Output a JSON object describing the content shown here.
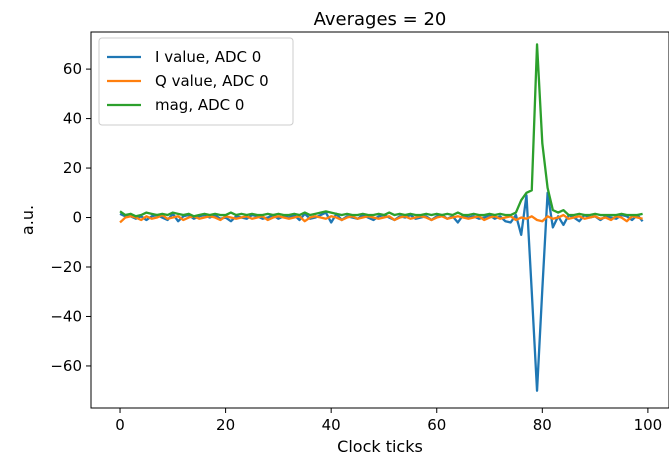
{
  "chart_data": {
    "type": "line",
    "title": "Averages = 20",
    "xlabel": "Clock ticks",
    "ylabel": "a.u.",
    "xlim": [
      -5.5,
      104
    ],
    "ylim": [
      -77,
      75
    ],
    "xticks": [
      0,
      20,
      40,
      60,
      80,
      100
    ],
    "yticks": [
      -60,
      -40,
      -20,
      0,
      20,
      40,
      60
    ],
    "grid": false,
    "legend_position": "top-left",
    "series": [
      {
        "name": "I value, ADC 0",
        "color": "#1f77b4",
        "values": [
          1.5,
          0.5,
          0.5,
          -0.5,
          0.5,
          -1,
          0.5,
          1,
          0,
          -1,
          1.5,
          -1.5,
          0.5,
          1,
          -0.5,
          0.5,
          1,
          0,
          1,
          -0.5,
          0,
          -1.5,
          0.5,
          0,
          -0.5,
          1,
          0.5,
          -0.5,
          0,
          1,
          -0.5,
          0.5,
          0,
          1,
          -1,
          1.5,
          -0.5,
          0,
          1,
          2,
          -2,
          1.5,
          -1,
          0.5,
          0,
          -0.5,
          1,
          0,
          -1,
          0.5,
          1,
          0,
          -1,
          0.5,
          0,
          1,
          -0.5,
          0,
          0.5,
          -1,
          0.5,
          1,
          -0.5,
          0.5,
          -2,
          1,
          0,
          0.5,
          -0.5,
          0,
          1,
          -0.5,
          0.5,
          -1.5,
          -2,
          1,
          -7,
          9,
          -30,
          -70,
          -29,
          10,
          -4,
          0.5,
          -3,
          1,
          0,
          -1.5,
          1,
          0,
          0.5,
          -1,
          0.5,
          0,
          -0.5,
          1,
          0.5,
          -1,
          1,
          -1.5
        ]
      },
      {
        "name": "Q value, ADC 0",
        "color": "#ff7f0e",
        "values": [
          -2,
          0,
          0.5,
          0,
          -1,
          0.5,
          -0.5,
          0,
          1,
          -0.5,
          0,
          0.5,
          -1,
          0,
          0.5,
          -0.5,
          0,
          0.5,
          0,
          -1,
          0.5,
          0,
          -0.5,
          0,
          0.5,
          -0.5,
          0,
          0.5,
          -1,
          0,
          0.5,
          0,
          -0.5,
          0,
          0.5,
          -1.5,
          0,
          0.5,
          0,
          -0.5,
          0.5,
          0,
          -1,
          0,
          0.5,
          -0.5,
          0,
          0.5,
          0,
          -0.5,
          0,
          0.5,
          -1,
          0,
          0.5,
          -0.5,
          0,
          0.5,
          0,
          -1,
          0,
          0.5,
          -0.5,
          0,
          0.5,
          0,
          -0.5,
          0,
          0.5,
          -1,
          0,
          0.5,
          -0.5,
          0,
          0.5,
          -1,
          0,
          -0.5,
          0.5,
          -1,
          -1.5,
          0.5,
          -0.5,
          0,
          1,
          -0.5,
          0,
          0.5,
          -0.5,
          0,
          0.5,
          -0.5,
          0,
          -1,
          0.5,
          0,
          -1.5,
          0.5,
          0,
          -0.5
        ]
      },
      {
        "name": "mag, ADC 0",
        "color": "#2ca02c",
        "values": [
          2.5,
          1,
          1.5,
          0.5,
          1,
          2,
          1.5,
          1,
          1.5,
          1,
          2,
          1.5,
          1,
          1.5,
          0.5,
          1,
          1.5,
          1,
          1.5,
          1,
          1,
          2,
          1,
          1.5,
          1,
          1.5,
          1,
          1,
          1.5,
          1,
          1.5,
          1,
          1,
          1.5,
          1,
          2,
          1,
          1.5,
          2,
          2.5,
          2,
          1.5,
          1,
          1.5,
          1,
          1,
          1.5,
          1,
          1,
          1.5,
          1,
          2,
          1,
          1.5,
          1,
          1.5,
          1,
          1,
          1.5,
          1,
          1.5,
          1,
          1.5,
          1,
          2,
          1,
          1,
          1.5,
          1,
          1,
          1.5,
          1,
          1.5,
          1,
          1,
          2,
          7,
          10,
          11,
          70,
          30,
          12,
          3,
          2,
          3,
          1,
          1,
          1.5,
          1,
          1,
          1.5,
          1,
          1,
          1,
          1,
          1.5,
          1,
          1,
          1,
          1.5
        ]
      }
    ]
  }
}
